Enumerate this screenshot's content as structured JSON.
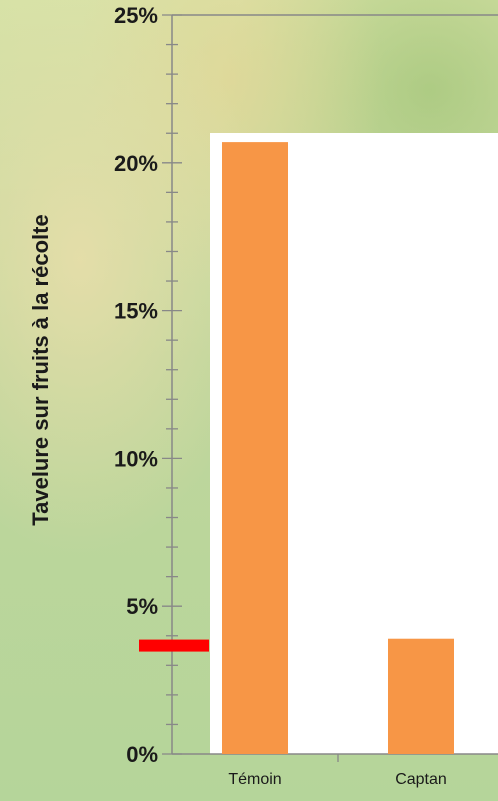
{
  "chart_data": {
    "type": "bar",
    "title": "",
    "xlabel": "",
    "ylabel": "Tavelure sur fruits à la récolte",
    "ylim": [
      0,
      25
    ],
    "y_tick_labels": [
      "0%",
      "5%",
      "10%",
      "15%",
      "20%",
      "25%"
    ],
    "categories": [
      "Témoin",
      "Captan"
    ],
    "values": [
      20.7,
      3.9
    ],
    "bar_color": "#f79646",
    "threshold_marker": {
      "value": 3.6,
      "color": "#ff0000"
    },
    "grid": false
  }
}
